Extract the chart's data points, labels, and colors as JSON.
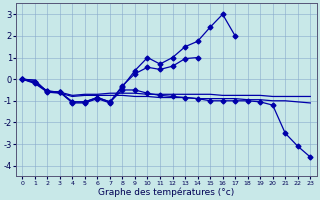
{
  "xlabel": "Graphe des températures (°c)",
  "background_color": "#c8e8e8",
  "grid_color": "#88aacc",
  "line_color": "#0000aa",
  "ylim": [
    -4.5,
    3.5
  ],
  "yticks": [
    -4,
    -3,
    -2,
    -1,
    0,
    1,
    2,
    3
  ],
  "xlim": [
    -0.5,
    23.5
  ],
  "xticks": [
    0,
    1,
    2,
    3,
    4,
    5,
    6,
    7,
    8,
    9,
    10,
    11,
    12,
    13,
    14,
    15,
    16,
    17,
    18,
    19,
    20,
    21,
    22,
    23
  ],
  "series": [
    {
      "y": [
        0.0,
        -0.2,
        -0.6,
        -0.6,
        -1.1,
        -1.1,
        -0.9,
        -1.1,
        -0.35,
        0.4,
        1.0,
        0.7,
        1.0,
        1.5,
        1.75,
        2.4,
        3.0,
        2.0,
        null,
        null,
        null,
        null,
        null,
        null
      ],
      "has_markers": true
    },
    {
      "y": [
        0.0,
        -0.15,
        -0.55,
        -0.6,
        -1.05,
        -1.05,
        -0.85,
        -1.05,
        -0.3,
        0.25,
        0.55,
        0.45,
        0.6,
        0.95,
        1.0,
        null,
        null,
        null,
        null,
        null,
        null,
        null,
        null,
        null
      ],
      "has_markers": true
    },
    {
      "y": [
        0.0,
        -0.05,
        -0.6,
        -0.6,
        -0.75,
        -0.7,
        -0.7,
        -0.65,
        -0.65,
        -0.65,
        -0.7,
        -0.7,
        -0.7,
        -0.7,
        -0.7,
        -0.7,
        -0.75,
        -0.75,
        -0.75,
        -0.75,
        -0.8,
        -0.8,
        -0.8,
        -0.8
      ],
      "has_markers": false
    },
    {
      "y": [
        0.0,
        -0.05,
        -0.6,
        -0.65,
        -0.8,
        -0.75,
        -0.75,
        -0.75,
        -0.75,
        -0.8,
        -0.8,
        -0.85,
        -0.85,
        -0.85,
        -0.9,
        -0.9,
        -0.9,
        -0.9,
        -0.95,
        -0.95,
        -1.0,
        -1.0,
        -1.05,
        -1.1
      ],
      "has_markers": false
    },
    {
      "y": [
        0.0,
        -0.15,
        -0.55,
        -0.6,
        -1.05,
        -1.05,
        -0.85,
        -1.05,
        -0.5,
        -0.5,
        -0.65,
        -0.75,
        -0.8,
        -0.85,
        -0.9,
        -1.0,
        -1.0,
        -1.0,
        -1.0,
        -1.05,
        -1.2,
        -2.5,
        -3.1,
        -3.6
      ],
      "has_markers": true
    }
  ]
}
